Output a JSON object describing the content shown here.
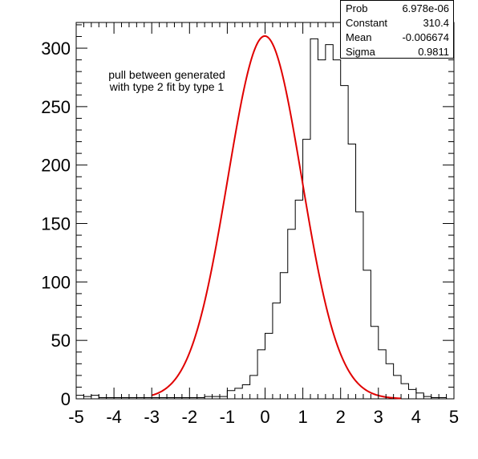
{
  "chart_data": {
    "type": "histogram",
    "bin_edges_start": -5.0,
    "bin_width": 0.2,
    "counts": [
      3,
      2,
      3,
      1,
      1,
      1,
      1,
      1,
      1,
      1,
      1,
      1,
      1,
      1,
      1,
      1,
      1,
      2,
      2,
      2,
      7,
      9,
      12,
      20,
      42,
      56,
      82,
      108,
      145,
      170,
      222,
      308,
      290,
      303,
      290,
      268,
      218,
      160,
      110,
      62,
      42,
      30,
      20,
      13,
      8,
      5,
      2,
      1,
      1,
      0
    ],
    "fit_curve": {
      "function": "gaus",
      "constant": 310.4,
      "mean": -0.006674,
      "sigma": 0.9811,
      "x_range": [
        -3.0,
        3.6
      ],
      "color": "#e00000"
    },
    "xlim": [
      -5,
      5
    ],
    "ylim": [
      0,
      322
    ],
    "x_ticks": [
      -5,
      -4,
      -3,
      -2,
      -1,
      0,
      1,
      2,
      3,
      4,
      5
    ],
    "y_ticks": [
      0,
      50,
      100,
      150,
      200,
      250,
      300
    ],
    "annotation": [
      "pull between generated",
      "with type 2 fit by type 1"
    ],
    "histogram_color": "#000000",
    "xlabel": "",
    "ylabel": "",
    "title": ""
  },
  "stats": [
    {
      "key": "Prob",
      "value": "6.978e-06"
    },
    {
      "key": "Constant",
      "value": "310.4"
    },
    {
      "key": "Mean",
      "value": "-0.006674"
    },
    {
      "key": "Sigma",
      "value": "0.9811"
    }
  ]
}
